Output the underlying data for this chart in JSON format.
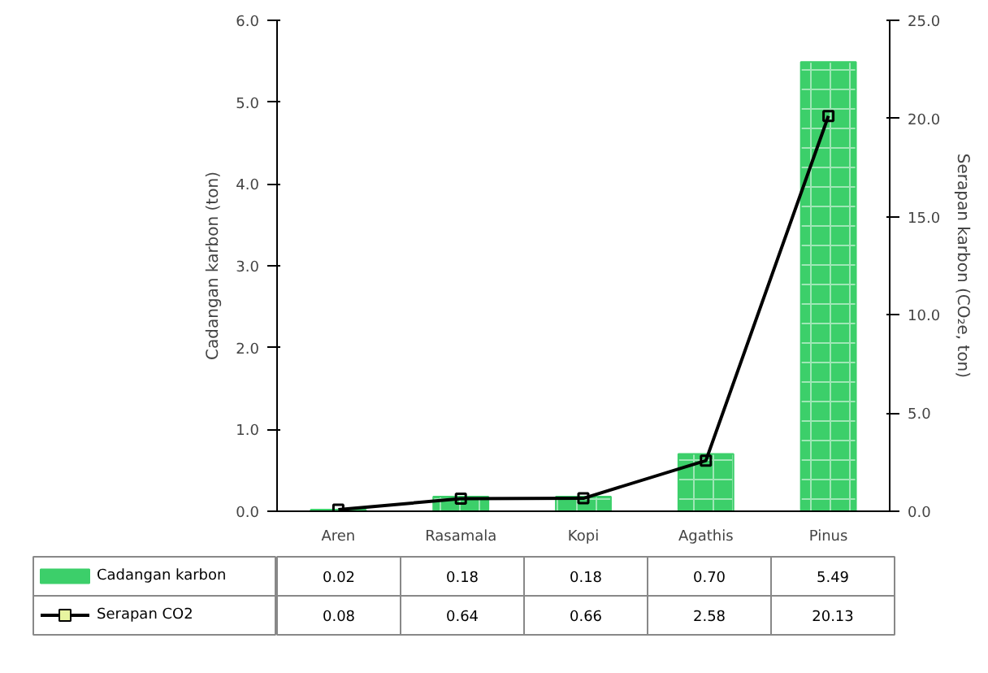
{
  "chart_data": {
    "type": "bar",
    "categories": [
      "Aren",
      "Rasamala",
      "Kopi",
      "Agathis",
      "Pinus"
    ],
    "ylabel": "Cadangan karbon (ton)",
    "y2label": "Serapan karbon (CO₂e, ton)",
    "ylim": [
      0,
      6
    ],
    "yticks": [
      {
        "value": 0,
        "label": "0.0"
      },
      {
        "value": 1,
        "label": "1.0"
      },
      {
        "value": 2,
        "label": "2.0"
      },
      {
        "value": 3,
        "label": "3.0"
      },
      {
        "value": 4,
        "label": "4.0"
      },
      {
        "value": 5,
        "label": "5.0"
      },
      {
        "value": 6,
        "label": "6.0"
      }
    ],
    "y2lim": [
      0,
      25
    ],
    "y2ticks": [
      {
        "value": 0,
        "label": "0.0"
      },
      {
        "value": 5,
        "label": "5.0"
      },
      {
        "value": 10,
        "label": "10.0"
      },
      {
        "value": 15,
        "label": "15.0"
      },
      {
        "value": 20,
        "label": "20.0"
      },
      {
        "value": 25,
        "label": "25.0"
      }
    ],
    "grid": false,
    "legend": "bottom",
    "series": [
      {
        "name": "Cadangan karbon",
        "color": "#3ccf6a",
        "values": [
          0.02,
          0.18,
          0.18,
          0.7,
          5.49
        ],
        "value_labels": [
          "0.02",
          "0.18",
          "0.18",
          "0.70",
          "5.49"
        ]
      },
      {
        "name": "Serapan CO2",
        "type": "line",
        "axis": "y2",
        "color": "#000000",
        "marker": "square",
        "line_style": "solid",
        "values": [
          0.08,
          0.64,
          0.66,
          2.58,
          20.13
        ],
        "value_labels": [
          "0.08",
          "0.64",
          "0.66",
          "2.58",
          "20.13"
        ]
      }
    ]
  }
}
